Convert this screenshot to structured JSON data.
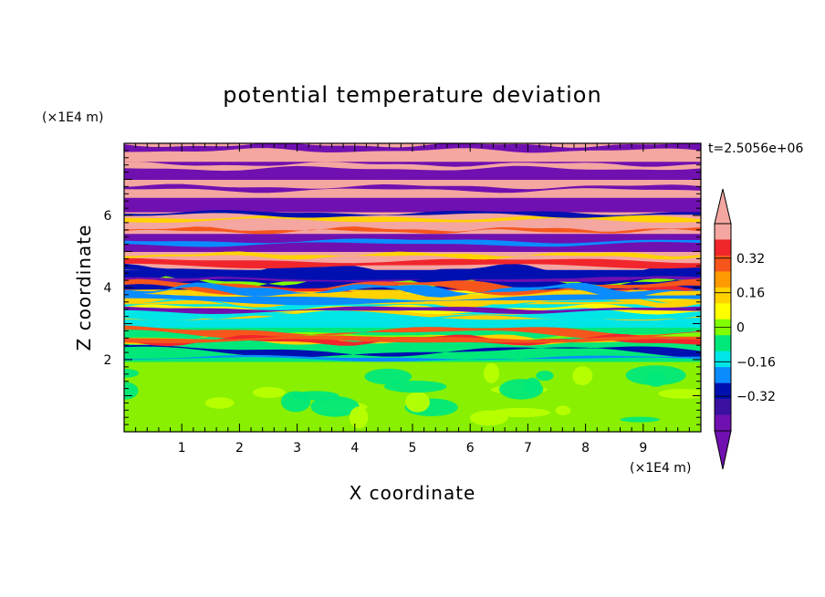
{
  "chart_data": {
    "type": "heatmap",
    "title": "potential temperature deviation",
    "xlabel": "X coordinate",
    "ylabel": "Z coordinate",
    "x_unit": "(×1E4 m)",
    "y_unit": "(×1E4 m)",
    "time_label": "t=2.5056e+06",
    "xlim": [
      0,
      10
    ],
    "ylim": [
      0,
      8
    ],
    "x_ticks": [
      1,
      2,
      3,
      4,
      5,
      6,
      7,
      8,
      9
    ],
    "y_ticks": [
      2,
      4,
      6
    ],
    "colorbar": {
      "levels": [
        -0.48,
        -0.4,
        -0.32,
        -0.24,
        -0.16,
        -0.08,
        0,
        0.08,
        0.16,
        0.24,
        0.32,
        0.4,
        0.48
      ],
      "labeled_levels": [
        0.32,
        0.16,
        0,
        -0.16,
        -0.32
      ],
      "label_texts": [
        "0.32",
        "0.16",
        "0",
        "−0.16",
        "−0.32"
      ],
      "colors_top_to_bottom": [
        "#f4a6a0",
        "#f0262c",
        "#f6561c",
        "#ff9a00",
        "#ffd200",
        "#ffff00",
        "#80ff00",
        "#00e87a",
        "#00e6e6",
        "#0a8cff",
        "#0010b0",
        "#3a10a0",
        "#7010b0"
      ],
      "extend": "both"
    },
    "bands": [
      {
        "z0": 0.0,
        "z1": 1.95,
        "color": "#88f000",
        "pattern": "patchy-green"
      },
      {
        "z0": 1.95,
        "z1": 2.9,
        "color": "#00e87a",
        "pattern": "turbulent-mixed"
      },
      {
        "z0": 2.9,
        "z1": 3.55,
        "color": "#00e6e6",
        "pattern": "cyan-layer"
      },
      {
        "z0": 3.55,
        "z1": 3.95,
        "color": "#ffd200",
        "pattern": "warm-stripes"
      },
      {
        "z0": 3.95,
        "z1": 4.5,
        "color": "#0010b0",
        "pattern": "dark-blue-layer"
      },
      {
        "z0": 4.5,
        "z1": 5.0,
        "color": "#f4a6a0",
        "pattern": "pink-layer"
      },
      {
        "z0": 5.0,
        "z1": 5.5,
        "color": "#7010b0",
        "pattern": "purple-layer"
      },
      {
        "z0": 5.5,
        "z1": 6.1,
        "color": "#f4a6a0",
        "pattern": "pink-layer"
      },
      {
        "z0": 6.1,
        "z1": 6.5,
        "color": "#7010b0",
        "pattern": "purple-layer"
      },
      {
        "z0": 6.5,
        "z1": 7.0,
        "color": "#f4a6a0",
        "pattern": "pink-layer"
      },
      {
        "z0": 7.0,
        "z1": 7.5,
        "color": "#7010b0",
        "pattern": "purple-layer"
      },
      {
        "z0": 7.5,
        "z1": 8.0,
        "color": "#f4a6a0",
        "pattern": "pink-layer"
      }
    ]
  }
}
